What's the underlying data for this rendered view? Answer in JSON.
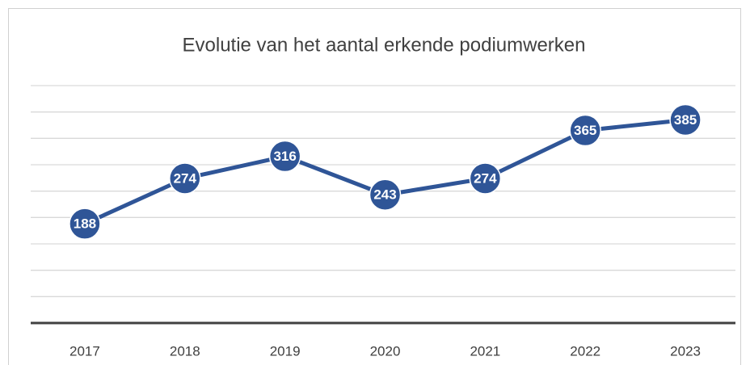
{
  "chart_data": {
    "type": "line",
    "title": "Evolutie van het aantal erkende podiumwerken",
    "categories": [
      "2017",
      "2018",
      "2019",
      "2020",
      "2021",
      "2022",
      "2023"
    ],
    "values": [
      188,
      274,
      316,
      243,
      274,
      365,
      385
    ],
    "color": "#2f5597",
    "ylim": [
      0,
      450
    ],
    "yticks": [
      0,
      50,
      100,
      150,
      200,
      250,
      300,
      350,
      400,
      450
    ],
    "grid": true
  }
}
